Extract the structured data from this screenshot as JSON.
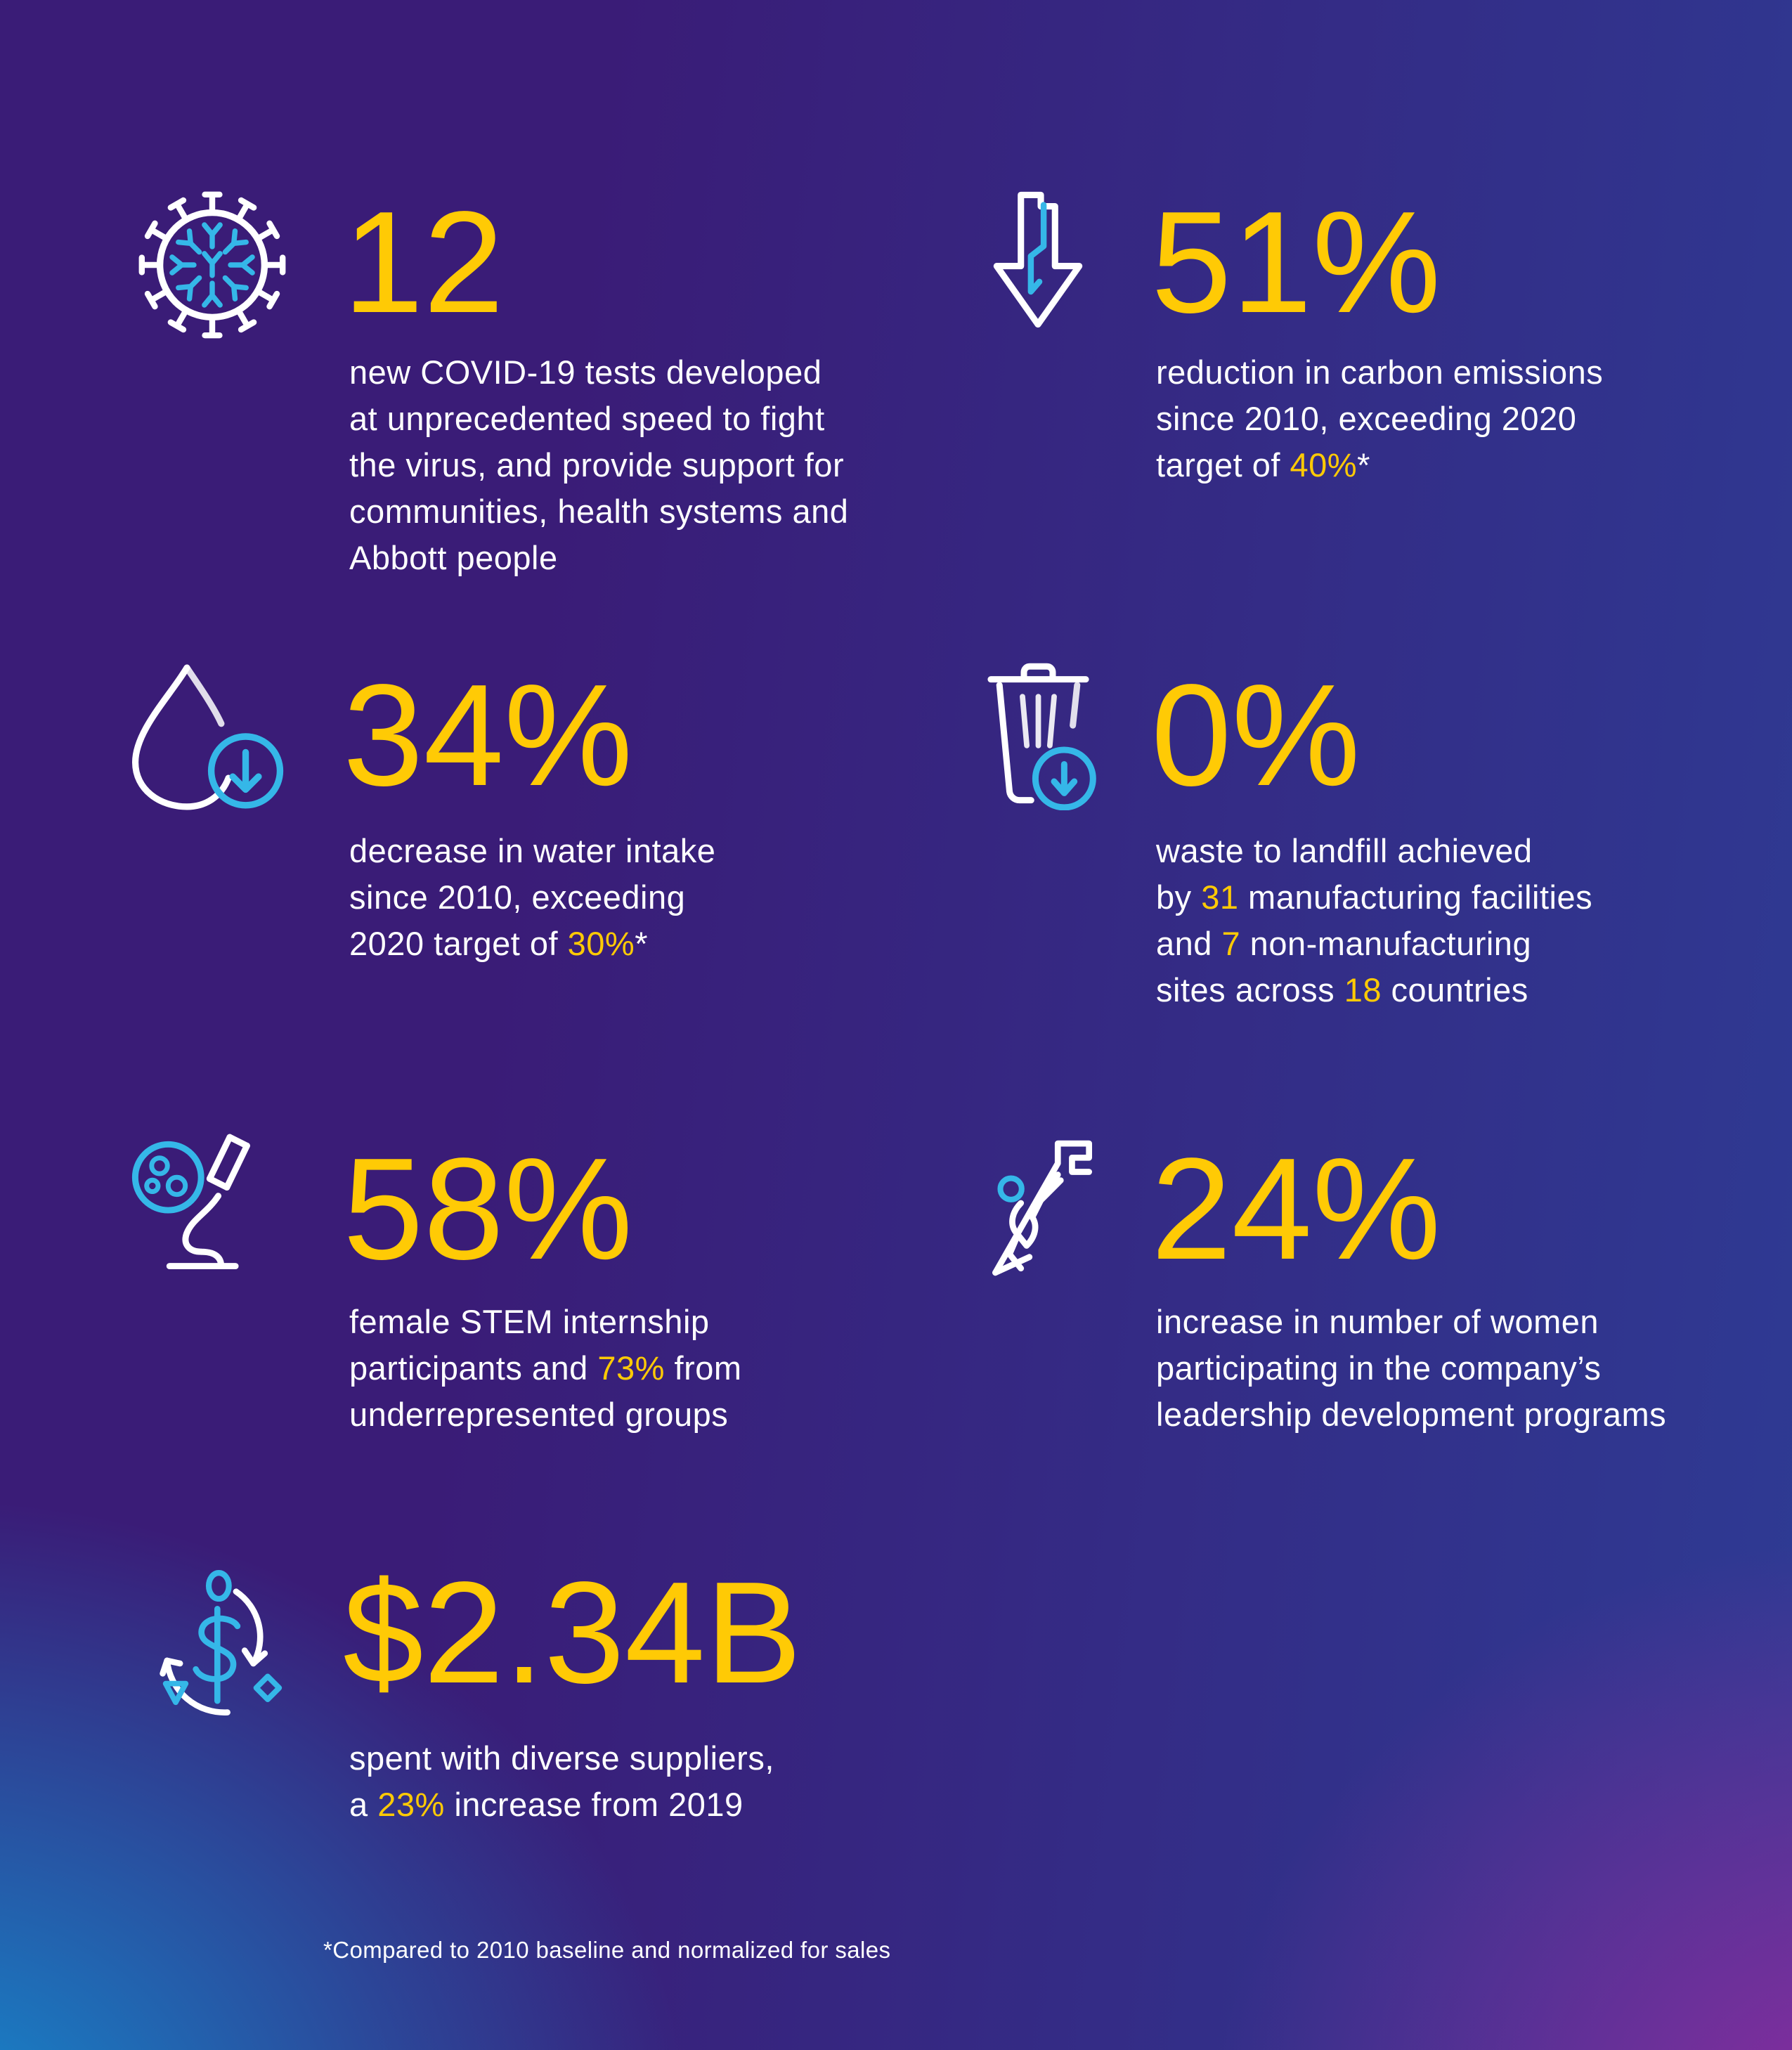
{
  "footnote": "*Compared to 2010 baseline and normalized for sales",
  "colors": {
    "yellow": "#ffca05",
    "cyan": "#35b7e8",
    "white": "#ffffff",
    "bg_tl": "#3a1c77",
    "bg_tr": "#2e3b94",
    "bg_bl": "#148dd0",
    "bg_br": "#8e2b9e"
  },
  "stats": [
    {
      "icon": "virus-icon",
      "value": "12",
      "desc": [
        {
          "t": "new COVID-19 tests developed\nat unprecedented speed to fight\nthe virus, and provide support for\ncommunities, health systems and\nAbbott people"
        }
      ]
    },
    {
      "icon": "arrow-down-lightning-icon",
      "value": "51%",
      "desc": [
        {
          "t": "reduction in carbon emissions\nsince 2010, exceeding 2020\ntarget of "
        },
        {
          "t": "40%",
          "hl": true
        },
        {
          "t": "*"
        }
      ]
    },
    {
      "icon": "water-drop-decrease-icon",
      "value": "34%",
      "desc": [
        {
          "t": "decrease in water intake\nsince 2010, exceeding\n2020 target of "
        },
        {
          "t": "30%",
          "hl": true
        },
        {
          "t": "*"
        }
      ]
    },
    {
      "icon": "trash-can-decrease-icon",
      "value": "0%",
      "desc": [
        {
          "t": "waste to landfill achieved\nby "
        },
        {
          "t": "31",
          "hl": true
        },
        {
          "t": " manufacturing facilities\nand "
        },
        {
          "t": "7",
          "hl": true
        },
        {
          "t": " non-manufacturing\nsites across "
        },
        {
          "t": "18",
          "hl": true
        },
        {
          "t": " countries"
        }
      ]
    },
    {
      "icon": "microscope-icon",
      "value": "58%",
      "desc": [
        {
          "t": "female STEM internship\nparticipants and "
        },
        {
          "t": "73%",
          "hl": true
        },
        {
          "t": " from\nunderrepresented groups"
        }
      ]
    },
    {
      "icon": "climber-icon",
      "value": "24%",
      "desc": [
        {
          "t": "increase in number of women\nparticipating in the company’s\nleadership development programs"
        }
      ]
    },
    {
      "icon": "dollar-cycle-icon",
      "value": "$2.34B",
      "desc": [
        {
          "t": "spent with diverse suppliers,\na "
        },
        {
          "t": "23%",
          "hl": true
        },
        {
          "t": " increase from 2019"
        }
      ]
    }
  ]
}
